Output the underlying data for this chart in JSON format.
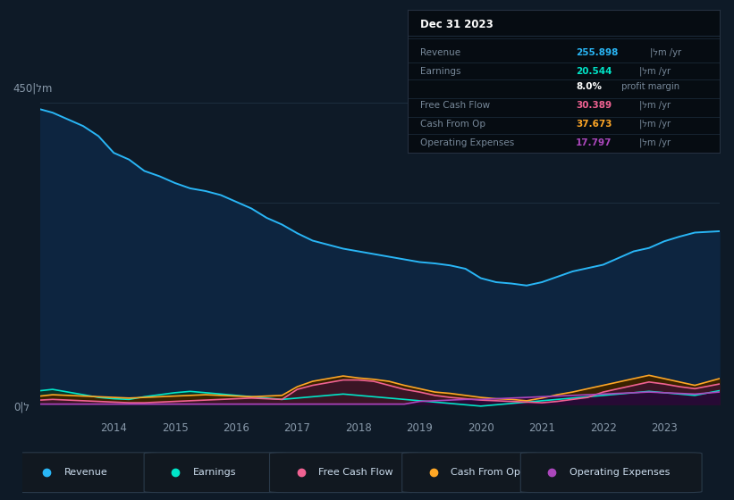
{
  "bg_color": "#0e1a27",
  "plot_bg_color": "#0e1a27",
  "years": [
    2012.8,
    2013.0,
    2013.25,
    2013.5,
    2013.75,
    2014.0,
    2014.25,
    2014.5,
    2014.75,
    2015.0,
    2015.25,
    2015.5,
    2015.75,
    2016.0,
    2016.25,
    2016.5,
    2016.75,
    2017.0,
    2017.25,
    2017.5,
    2017.75,
    2018.0,
    2018.25,
    2018.5,
    2018.75,
    2019.0,
    2019.25,
    2019.5,
    2019.75,
    2020.0,
    2020.25,
    2020.5,
    2020.75,
    2021.0,
    2021.25,
    2021.5,
    2021.75,
    2022.0,
    2022.25,
    2022.5,
    2022.75,
    2023.0,
    2023.25,
    2023.5,
    2023.9
  ],
  "revenue": [
    440,
    435,
    425,
    415,
    400,
    375,
    365,
    348,
    340,
    330,
    322,
    318,
    312,
    302,
    292,
    278,
    268,
    255,
    244,
    238,
    232,
    228,
    224,
    220,
    216,
    212,
    210,
    207,
    202,
    188,
    182,
    180,
    177,
    182,
    190,
    198,
    203,
    208,
    218,
    228,
    233,
    243,
    250,
    256,
    258
  ],
  "earnings": [
    20,
    22,
    18,
    14,
    10,
    8,
    7,
    11,
    14,
    17,
    19,
    17,
    15,
    13,
    11,
    9,
    7,
    9,
    11,
    13,
    15,
    13,
    11,
    9,
    7,
    5,
    3,
    1,
    -1,
    -3,
    -1,
    1,
    3,
    5,
    7,
    9,
    11,
    13,
    15,
    17,
    19,
    17,
    15,
    13,
    20
  ],
  "free_cash_flow": [
    6,
    7,
    6,
    5,
    4,
    3,
    2,
    2,
    3,
    4,
    5,
    6,
    7,
    8,
    9,
    8,
    7,
    22,
    28,
    32,
    36,
    36,
    34,
    28,
    22,
    18,
    13,
    10,
    8,
    6,
    5,
    4,
    3,
    2,
    4,
    7,
    10,
    18,
    23,
    28,
    33,
    30,
    26,
    23,
    30
  ],
  "cash_from_op": [
    12,
    14,
    13,
    12,
    11,
    10,
    9,
    10,
    11,
    12,
    13,
    14,
    13,
    12,
    11,
    12,
    13,
    26,
    34,
    38,
    42,
    39,
    37,
    34,
    28,
    23,
    18,
    16,
    13,
    10,
    8,
    7,
    5,
    9,
    14,
    18,
    23,
    28,
    33,
    38,
    43,
    38,
    33,
    28,
    38
  ],
  "operating_expenses": [
    0,
    0,
    0,
    0,
    0,
    0,
    0,
    0,
    0,
    0,
    0,
    0,
    0,
    0,
    0,
    0,
    0,
    0,
    0,
    0,
    0,
    0,
    0,
    0,
    0,
    4,
    5,
    6,
    7,
    7,
    8,
    9,
    10,
    11,
    12,
    13,
    14,
    15,
    16,
    17,
    18,
    17,
    16,
    15,
    18
  ],
  "revenue_color": "#29b6f6",
  "earnings_color": "#00e5c8",
  "free_cash_flow_color": "#f06292",
  "cash_from_op_color": "#ffa726",
  "operating_expenses_color": "#ab47bc",
  "revenue_fill": "#0d2540",
  "earnings_fill": "#093328",
  "fcf_fill": "#3a1525",
  "cfo_fill": "#3a2200",
  "opex_fill": "#270a35",
  "grid_color": "#1c2e3e",
  "ylabel_top": "450|לm",
  "ylabel_bot": "0|ל",
  "xtick_labels": [
    "2014",
    "2015",
    "2016",
    "2017",
    "2018",
    "2019",
    "2020",
    "2021",
    "2022",
    "2023"
  ],
  "xtick_positions": [
    2014,
    2015,
    2016,
    2017,
    2018,
    2019,
    2020,
    2021,
    2022,
    2023
  ],
  "ymax": 480,
  "ymin": -20,
  "tooltip": {
    "date": "Dec 31 2023",
    "rows": [
      {
        "label": "Revenue",
        "value": "255.898",
        "unit": "|לm /yr",
        "color": "#29b6f6"
      },
      {
        "label": "Earnings",
        "value": "20.544",
        "unit": "|לm /yr",
        "color": "#00e5c8"
      },
      {
        "label": "",
        "value": "8.0%",
        "unit": " profit margin",
        "color": "#ffffff"
      },
      {
        "label": "Free Cash Flow",
        "value": "30.389",
        "unit": "|לm /yr",
        "color": "#f06292"
      },
      {
        "label": "Cash From Op",
        "value": "37.673",
        "unit": "|לm /yr",
        "color": "#ffa726"
      },
      {
        "label": "Operating Expenses",
        "value": "17.797",
        "unit": "|לm /yr",
        "color": "#ab47bc"
      }
    ]
  },
  "legend": [
    {
      "label": "Revenue",
      "color": "#29b6f6"
    },
    {
      "label": "Earnings",
      "color": "#00e5c8"
    },
    {
      "label": "Free Cash Flow",
      "color": "#f06292"
    },
    {
      "label": "Cash From Op",
      "color": "#ffa726"
    },
    {
      "label": "Operating Expenses",
      "color": "#ab47bc"
    }
  ]
}
